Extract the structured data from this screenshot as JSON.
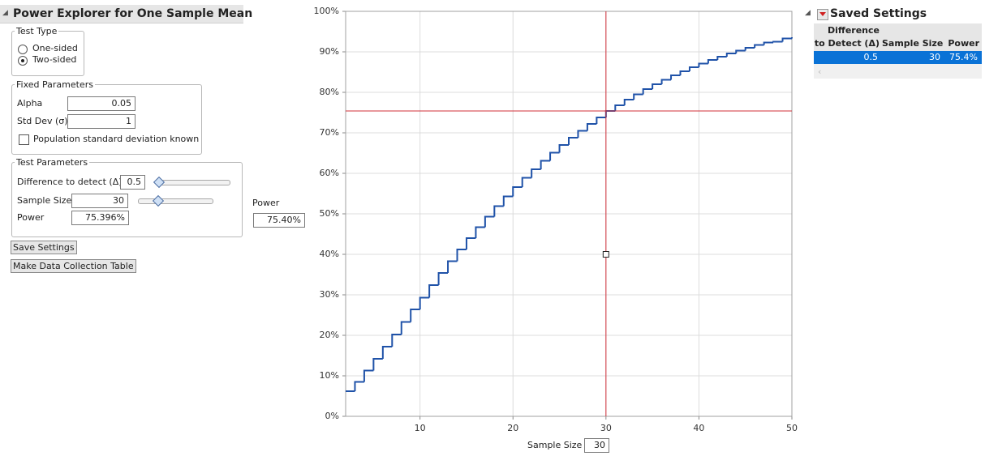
{
  "panel": {
    "title": "Power Explorer for One Sample Mean",
    "test_type": {
      "label": "Test Type",
      "options": [
        "One-sided",
        "Two-sided"
      ],
      "selected": 1
    },
    "fixed": {
      "label": "Fixed Parameters",
      "alpha_label": "Alpha",
      "alpha": "0.05",
      "sd_label": "Std Dev (σ)",
      "sd": "1",
      "known_label": "Population standard deviation known",
      "known": false
    },
    "test": {
      "label": "Test Parameters",
      "diff_label": "Difference to detect (Δ)",
      "diff": "0.5",
      "n_label": "Sample Size",
      "n": "30",
      "power_label": "Power",
      "power": "75.396%"
    },
    "buttons": [
      "Save Settings",
      "Make Data Collection Table"
    ]
  },
  "power_readout": {
    "label": "Power",
    "value": "75.40%"
  },
  "chart_data": {
    "type": "line",
    "step": true,
    "color": "#1f52a8",
    "xlabel": "Sample Size",
    "x": [
      2,
      3,
      4,
      5,
      6,
      7,
      8,
      9,
      10,
      11,
      12,
      13,
      14,
      15,
      16,
      17,
      18,
      19,
      20,
      21,
      22,
      23,
      24,
      25,
      26,
      27,
      28,
      29,
      30,
      31,
      32,
      33,
      34,
      35,
      36,
      37,
      38,
      39,
      40,
      41,
      42,
      43,
      44,
      45,
      46,
      47,
      48,
      49,
      50
    ],
    "values": [
      6.2,
      8.5,
      11.3,
      14.2,
      17.2,
      20.2,
      23.3,
      26.4,
      29.3,
      32.4,
      35.4,
      38.3,
      41.2,
      44.0,
      46.7,
      49.3,
      51.9,
      54.3,
      56.6,
      58.9,
      61.0,
      63.1,
      65.1,
      67.0,
      68.8,
      70.5,
      72.2,
      73.8,
      75.4,
      76.8,
      78.2,
      79.5,
      80.8,
      82.0,
      83.1,
      84.2,
      85.2,
      86.2,
      87.1,
      88.0,
      88.8,
      89.6,
      90.3,
      91.0,
      91.7,
      92.3,
      92.5,
      93.3,
      93.6
    ],
    "xlim": [
      2,
      50
    ],
    "xticks": [
      10,
      20,
      30,
      40,
      50
    ],
    "ylim": [
      0,
      100
    ],
    "yticks": [
      {
        "value": 0,
        "label": "0%"
      },
      {
        "value": 10,
        "label": "10%"
      },
      {
        "value": 20,
        "label": "20%"
      },
      {
        "value": 30,
        "label": "30%"
      },
      {
        "value": 40,
        "label": "40%"
      },
      {
        "value": 50,
        "label": "50%"
      },
      {
        "value": 60,
        "label": "60%"
      },
      {
        "value": 70,
        "label": "70%"
      },
      {
        "value": 80,
        "label": "80%"
      },
      {
        "value": 90,
        "label": "90%"
      },
      {
        "value": 100,
        "label": "100%"
      }
    ],
    "grid": true,
    "crosshair": {
      "x": 30,
      "y": 75.4,
      "color": "#d0303a"
    },
    "handle_y": 40
  },
  "saved": {
    "title": "Saved Settings",
    "columns": [
      [
        "Difference",
        "to Detect (Δ)"
      ],
      [
        "Sample Size"
      ],
      [
        "Power"
      ]
    ],
    "rows": [
      [
        "0.5",
        "30",
        "75.4%"
      ]
    ]
  }
}
